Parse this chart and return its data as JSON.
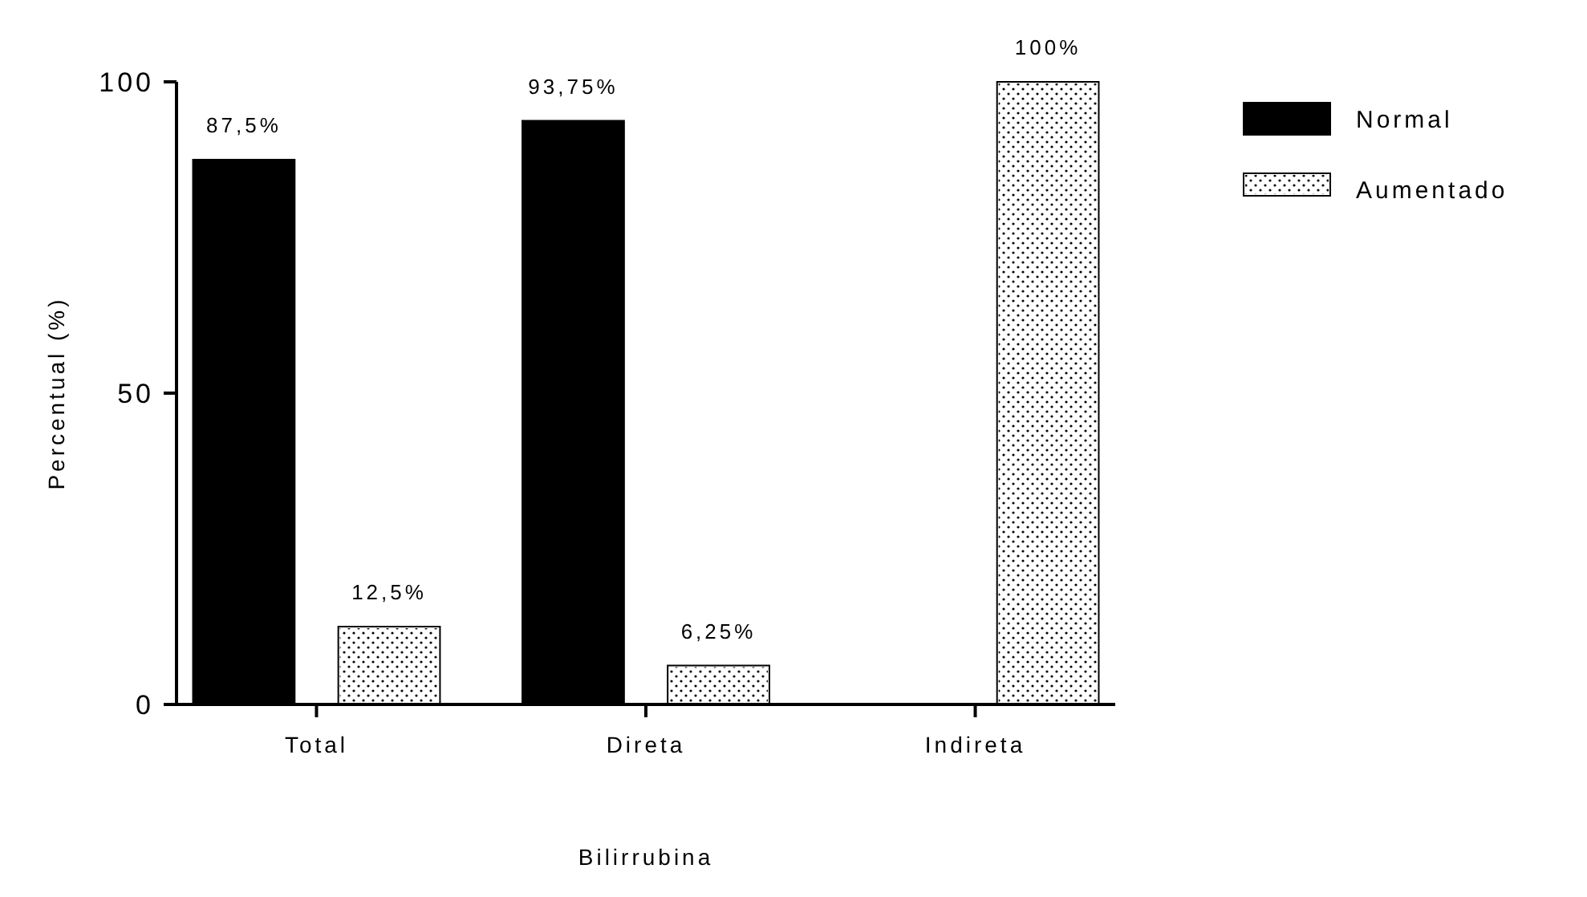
{
  "chart_data": {
    "type": "bar",
    "xlabel": "Bilirrubina",
    "ylabel": "Percentual (%)",
    "categories": [
      "Total",
      "Direta",
      "Indireta"
    ],
    "series": [
      {
        "name": "Normal",
        "color": "#000000",
        "values": [
          87.5,
          93.75,
          0
        ],
        "value_labels": [
          "87,5%",
          "93,75%",
          null
        ]
      },
      {
        "name": "Aumentado",
        "color": "#ffffff",
        "values": [
          12.5,
          6.25,
          100
        ],
        "value_labels": [
          "12,5%",
          "6,25%",
          "100%"
        ]
      }
    ],
    "ylim": [
      0,
      100
    ],
    "yticks": [
      0,
      50,
      100
    ],
    "grid": false,
    "legend": "top right"
  }
}
